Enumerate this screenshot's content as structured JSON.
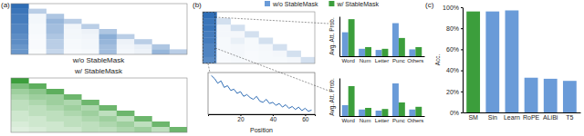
{
  "chart_data": [
    {
      "type": "heatmap",
      "title": "w/o StableMask",
      "annotations": [
        "(a)"
      ],
      "color": "#2f6db5",
      "tick_labels": false,
      "cells": [
        [
          0.9,
          null,
          null,
          null,
          null,
          null,
          null,
          null,
          null,
          null
        ],
        [
          0.85,
          0.3,
          null,
          null,
          null,
          null,
          null,
          null,
          null,
          null
        ],
        [
          0.8,
          0.05,
          0.35,
          null,
          null,
          null,
          null,
          null,
          null,
          null
        ],
        [
          0.8,
          0.05,
          0.45,
          0.3,
          null,
          null,
          null,
          null,
          null,
          null
        ],
        [
          0.75,
          0.04,
          0.4,
          0.06,
          0.3,
          null,
          null,
          null,
          null,
          null
        ],
        [
          0.75,
          0.04,
          0.4,
          0.05,
          0.08,
          0.35,
          null,
          null,
          null,
          null
        ],
        [
          0.7,
          0.03,
          0.35,
          0.05,
          0.06,
          0.5,
          0.3,
          null,
          null,
          null
        ],
        [
          0.7,
          0.03,
          0.3,
          0.04,
          0.05,
          0.45,
          0.08,
          0.3,
          null,
          null
        ],
        [
          0.65,
          0.03,
          0.3,
          0.04,
          0.05,
          0.4,
          0.06,
          0.1,
          0.35,
          null
        ],
        [
          0.65,
          0.02,
          0.25,
          0.03,
          0.04,
          0.4,
          0.05,
          0.08,
          0.45,
          0.3
        ]
      ]
    },
    {
      "type": "heatmap",
      "title": "w/ StableMask",
      "color": "#3c9e3c",
      "tick_labels": false,
      "cells": [
        [
          0.6,
          null,
          null,
          null,
          null,
          null,
          null,
          null,
          null,
          null
        ],
        [
          0.4,
          0.5,
          null,
          null,
          null,
          null,
          null,
          null,
          null,
          null
        ],
        [
          0.3,
          0.35,
          0.5,
          null,
          null,
          null,
          null,
          null,
          null,
          null
        ],
        [
          0.25,
          0.3,
          0.3,
          0.45,
          null,
          null,
          null,
          null,
          null,
          null
        ],
        [
          0.2,
          0.25,
          0.3,
          0.25,
          0.45,
          null,
          null,
          null,
          null,
          null
        ],
        [
          0.2,
          0.2,
          0.25,
          0.3,
          0.25,
          0.45,
          null,
          null,
          null,
          null
        ],
        [
          0.15,
          0.2,
          0.2,
          0.25,
          0.3,
          0.2,
          0.45,
          null,
          null,
          null
        ],
        [
          0.15,
          0.15,
          0.2,
          0.2,
          0.25,
          0.3,
          0.2,
          0.45,
          null,
          null
        ],
        [
          0.12,
          0.15,
          0.15,
          0.2,
          0.2,
          0.25,
          0.3,
          0.2,
          0.45,
          null
        ],
        [
          0.1,
          0.12,
          0.15,
          0.15,
          0.2,
          0.2,
          0.25,
          0.3,
          0.2,
          0.45
        ]
      ]
    },
    {
      "type": "heatmap",
      "annotations": [
        "(b)"
      ],
      "color": "#2f6db5",
      "tick_labels": false,
      "cells": [
        [
          0.95,
          null,
          null,
          null,
          null,
          null,
          null,
          null
        ],
        [
          0.9,
          0.2,
          null,
          null,
          null,
          null,
          null,
          null
        ],
        [
          0.9,
          0.05,
          0.2,
          null,
          null,
          null,
          null,
          null
        ],
        [
          0.85,
          0.05,
          0.05,
          0.2,
          null,
          null,
          null,
          null
        ],
        [
          0.85,
          0.04,
          0.1,
          0.04,
          0.2,
          null,
          null,
          null
        ],
        [
          0.8,
          0.04,
          0.05,
          0.04,
          0.05,
          0.2,
          null,
          null
        ],
        [
          0.8,
          0.03,
          0.05,
          0.03,
          0.04,
          0.05,
          0.2,
          null
        ],
        [
          0.75,
          0.03,
          0.04,
          0.03,
          0.04,
          0.04,
          0.05,
          0.2
        ]
      ]
    },
    {
      "type": "line",
      "x_label": "Position",
      "color": "#2f6db5",
      "tick_labels": "x",
      "x": [
        2,
        4,
        6,
        8,
        10,
        12,
        14,
        16,
        18,
        20,
        22,
        24,
        26,
        28,
        30,
        32,
        34,
        36,
        38,
        40,
        42,
        44,
        46,
        48,
        50,
        52,
        54,
        56,
        58,
        60,
        62,
        64
      ],
      "values": [
        0.95,
        0.9,
        0.82,
        0.86,
        0.75,
        0.78,
        0.7,
        0.72,
        0.65,
        0.68,
        0.6,
        0.63,
        0.58,
        0.55,
        0.6,
        0.52,
        0.5,
        0.55,
        0.48,
        0.5,
        0.45,
        0.48,
        0.42,
        0.46,
        0.4,
        0.43,
        0.38,
        0.42,
        0.36,
        0.4,
        0.35,
        0.37
      ],
      "xlim": [
        0,
        66
      ],
      "xticks": [
        20,
        40,
        60
      ],
      "ylim": [
        0.3,
        1.0
      ]
    },
    {
      "type": "bar",
      "y_label": "Avg. Att. Prob.",
      "legend": "top",
      "tick_labels": "x",
      "categories": [
        "Word",
        "Num",
        "Letter",
        "Punc",
        "Others"
      ],
      "series": [
        {
          "name": "w/o StableMask",
          "color": "#6a9bd8",
          "values": [
            0.42,
            0.13,
            0.11,
            0.58,
            0.12
          ]
        },
        {
          "name": "w/ StableMask",
          "color": "#3c9e3c",
          "values": [
            0.65,
            0.16,
            0.13,
            0.32,
            0.16
          ]
        }
      ],
      "ylim": [
        0,
        0.7
      ]
    },
    {
      "type": "bar",
      "y_label": "Avg. Att. Prob.",
      "tick_labels": "x",
      "categories": [
        "Word",
        "Num",
        "Letter",
        "Punc",
        "Others"
      ],
      "series": [
        {
          "color": "#6a9bd8",
          "values": [
            0.2,
            0.12,
            0.1,
            0.6,
            0.12
          ]
        },
        {
          "color": "#3c9e3c",
          "values": [
            0.55,
            0.15,
            0.13,
            0.25,
            0.17
          ]
        }
      ],
      "ylim": [
        0,
        0.7
      ]
    },
    {
      "type": "bar",
      "y_label": "Acc.",
      "annotations": [
        "(c)"
      ],
      "categories": [
        "SM",
        "Sin",
        "Learn",
        "RoPE",
        "ALiBi",
        "T5"
      ],
      "values": [
        96,
        96,
        97,
        33,
        32,
        30
      ],
      "colors": [
        "#3c9e3c",
        "#6a9bd8",
        "#6a9bd8",
        "#6a9bd8",
        "#6a9bd8",
        "#6a9bd8"
      ],
      "ylim": [
        0,
        100
      ],
      "yticks": [
        {
          "value": 0,
          "label": "0%"
        },
        {
          "value": 20,
          "label": "20%"
        },
        {
          "value": 40,
          "label": "40%"
        },
        {
          "value": 60,
          "label": "60%"
        },
        {
          "value": 80,
          "label": "80%"
        },
        {
          "value": 100,
          "label": "100%"
        }
      ]
    }
  ]
}
